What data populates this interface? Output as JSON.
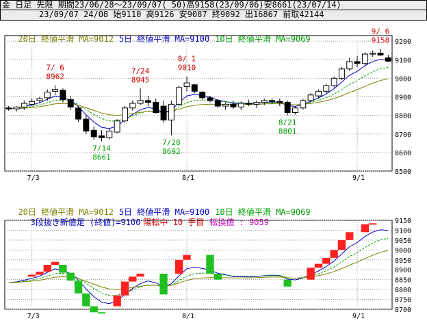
{
  "header": {
    "symbol": "金",
    "timeframe": "日足",
    "market": "先限",
    "period": "期間23/06/28〜23/09/07( 50)",
    "high_summary": "高9158(23/09/06)",
    "low_summary": "安8661(23/07/14)",
    "last_date": "23/09/07 24/08",
    "open": "始9110",
    "high": "高9126",
    "low": "安9087",
    "close": "終9092",
    "volume": "出16867",
    "prev_close": "前取42144"
  },
  "legend": {
    "ma20": "20日 終値平滑 MA=9012",
    "ma5": "5日 終値平滑 MA=9100",
    "ma10": "10日 終値平滑 MA=9069",
    "sanbon_prefix": "3段抜き新値足 (終値)=9100",
    "sanbon_state": "陽転中 10 手目",
    "sanbon_reversal": "転換値 : 9059"
  },
  "colors": {
    "ma5": "#0000c0",
    "ma10": "#00a000",
    "ma20": "#808000",
    "up_brick": "#ff2020",
    "down_brick": "#20c020",
    "high_label": "#d00000",
    "low_label": "#00a000",
    "grid": "#999999"
  },
  "x_labels": [
    "7/3",
    "8/1",
    "9/1"
  ],
  "chart_data": [
    {
      "type": "candlestick",
      "title": "日足",
      "ylim": [
        8500,
        9230
      ],
      "yticks": [
        8500,
        8600,
        8700,
        8800,
        8900,
        9000,
        9100,
        9200
      ],
      "x_tick_labels": [
        "7/3",
        "8/1",
        "9/1"
      ],
      "grid": true,
      "ohlc_columns": [
        "date",
        "open",
        "high",
        "low",
        "close"
      ],
      "ohlc": [
        [
          "6/28",
          8840,
          8850,
          8825,
          8835
        ],
        [
          "6/29",
          8835,
          8850,
          8820,
          8845
        ],
        [
          "6/30",
          8845,
          8880,
          8830,
          8865
        ],
        [
          "7/3",
          8860,
          8890,
          8850,
          8875
        ],
        [
          "7/4",
          8880,
          8900,
          8865,
          8890
        ],
        [
          "7/5",
          8895,
          8940,
          8880,
          8925
        ],
        [
          "7/6",
          8930,
          8962,
          8910,
          8940
        ],
        [
          "7/7",
          8935,
          8945,
          8870,
          8885
        ],
        [
          "7/10",
          8885,
          8905,
          8830,
          8845
        ],
        [
          "7/11",
          8840,
          8850,
          8765,
          8780
        ],
        [
          "7/12",
          8780,
          8800,
          8700,
          8715
        ],
        [
          "7/13",
          8720,
          8740,
          8670,
          8685
        ],
        [
          "7/14",
          8690,
          8720,
          8661,
          8680
        ],
        [
          "7/18",
          8680,
          8730,
          8670,
          8715
        ],
        [
          "7/19",
          8710,
          8780,
          8705,
          8770
        ],
        [
          "7/20",
          8770,
          8850,
          8760,
          8840
        ],
        [
          "7/21",
          8840,
          8880,
          8825,
          8865
        ],
        [
          "7/24",
          8865,
          8945,
          8855,
          8880
        ],
        [
          "7/25",
          8880,
          8905,
          8850,
          8870
        ],
        [
          "7/26",
          8870,
          8890,
          8810,
          8815
        ],
        [
          "7/27",
          8850,
          8880,
          8760,
          8775
        ],
        [
          "7/28",
          8775,
          8880,
          8692,
          8860
        ],
        [
          "7/31",
          8860,
          8960,
          8850,
          8950
        ],
        [
          "8/1",
          8955,
          9010,
          8930,
          8975
        ],
        [
          "8/2",
          8965,
          8970,
          8920,
          8930
        ],
        [
          "8/3",
          8925,
          8930,
          8885,
          8895
        ],
        [
          "8/4",
          8895,
          8905,
          8870,
          8880
        ],
        [
          "8/7",
          8880,
          8890,
          8840,
          8850
        ],
        [
          "8/8",
          8850,
          8870,
          8830,
          8860
        ],
        [
          "8/9",
          8860,
          8880,
          8835,
          8845
        ],
        [
          "8/10",
          8845,
          8875,
          8830,
          8865
        ],
        [
          "8/14",
          8865,
          8885,
          8850,
          8860
        ],
        [
          "8/15",
          8860,
          8880,
          8840,
          8870
        ],
        [
          "8/16",
          8870,
          8890,
          8855,
          8880
        ],
        [
          "8/17",
          8880,
          8895,
          8860,
          8875
        ],
        [
          "8/18",
          8875,
          8890,
          8850,
          8870
        ],
        [
          "8/21",
          8870,
          8880,
          8801,
          8815
        ],
        [
          "8/22",
          8815,
          8850,
          8805,
          8840
        ],
        [
          "8/23",
          8840,
          8890,
          8830,
          8880
        ],
        [
          "8/24",
          8880,
          8920,
          8870,
          8910
        ],
        [
          "8/25",
          8905,
          8940,
          8890,
          8930
        ],
        [
          "8/28",
          8930,
          8970,
          8920,
          8960
        ],
        [
          "8/29",
          8960,
          9010,
          8950,
          9000
        ],
        [
          "8/30",
          9000,
          9060,
          8990,
          9050
        ],
        [
          "8/31",
          9050,
          9110,
          9040,
          9090
        ],
        [
          "9/1",
          9090,
          9120,
          9060,
          9080
        ],
        [
          "9/4",
          9080,
          9140,
          9070,
          9130
        ],
        [
          "9/5",
          9130,
          9150,
          9115,
          9135
        ],
        [
          "9/6",
          9135,
          9158,
          9120,
          9125
        ],
        [
          "9/7",
          9110,
          9126,
          9087,
          9092
        ]
      ],
      "annotations": [
        {
          "date": "7/6",
          "value": 8962,
          "kind": "high",
          "label": "7/ 6",
          "value_label": "8962"
        },
        {
          "date": "7/14",
          "value": 8661,
          "kind": "low",
          "label": "7/14",
          "value_label": "8661"
        },
        {
          "date": "7/24",
          "value": 8945,
          "kind": "high",
          "label": "7/24",
          "value_label": "8945"
        },
        {
          "date": "7/28",
          "value": 8692,
          "kind": "low",
          "label": "7/28",
          "value_label": "8692"
        },
        {
          "date": "8/1",
          "value": 9010,
          "kind": "high",
          "label": "8/ 1",
          "value_label": "9010"
        },
        {
          "date": "8/21",
          "value": 8801,
          "kind": "low",
          "label": "8/21",
          "value_label": "8801"
        },
        {
          "date": "9/6",
          "value": 9158,
          "kind": "high",
          "label": "9/ 6",
          "value_label": "9158"
        }
      ],
      "series": [
        {
          "name": "5日 終値平滑",
          "periods": 5
        },
        {
          "name": "10日 終値平滑",
          "periods": 10
        },
        {
          "name": "20日 終値平滑",
          "periods": 20
        }
      ]
    },
    {
      "type": "brick",
      "title": "3段抜き新値足 (終値)",
      "ylim": [
        8700,
        9150
      ],
      "yticks": [
        8700,
        8750,
        8800,
        8850,
        8900,
        8950,
        9000,
        9050,
        9100,
        9150
      ],
      "x_tick_labels": [
        "7/3",
        "8/1",
        "9/1"
      ],
      "grid": true,
      "brick_columns": [
        "date",
        "low",
        "high",
        "direction"
      ],
      "bricks": [
        [
          "7/3",
          8865,
          8875,
          "up"
        ],
        [
          "7/4",
          8875,
          8890,
          "up"
        ],
        [
          "7/5",
          8890,
          8925,
          "up"
        ],
        [
          "7/6",
          8925,
          8940,
          "up"
        ],
        [
          "7/7",
          8885,
          8925,
          "down"
        ],
        [
          "7/10",
          8845,
          8885,
          "down"
        ],
        [
          "7/11",
          8780,
          8845,
          "down"
        ],
        [
          "7/12",
          8715,
          8780,
          "down"
        ],
        [
          "7/13",
          8685,
          8715,
          "down"
        ],
        [
          "7/14",
          8680,
          8685,
          "down"
        ],
        [
          "7/19",
          8715,
          8770,
          "up"
        ],
        [
          "7/20",
          8770,
          8840,
          "up"
        ],
        [
          "7/21",
          8840,
          8865,
          "up"
        ],
        [
          "7/24",
          8865,
          8880,
          "up"
        ],
        [
          "7/27",
          8775,
          8880,
          "down"
        ],
        [
          "7/31",
          8880,
          8950,
          "up"
        ],
        [
          "8/1",
          8950,
          8975,
          "up"
        ],
        [
          "8/4",
          8880,
          8975,
          "down"
        ],
        [
          "8/7",
          8850,
          8880,
          "down"
        ],
        [
          "8/21",
          8815,
          8850,
          "down"
        ],
        [
          "8/24",
          8850,
          8910,
          "up"
        ],
        [
          "8/25",
          8910,
          8930,
          "up"
        ],
        [
          "8/28",
          8930,
          8960,
          "up"
        ],
        [
          "8/29",
          8960,
          9000,
          "up"
        ],
        [
          "8/30",
          9000,
          9050,
          "up"
        ],
        [
          "8/31",
          9050,
          9090,
          "up"
        ],
        [
          "9/4",
          9090,
          9130,
          "up"
        ],
        [
          "9/5",
          9130,
          9135,
          "up"
        ]
      ]
    }
  ]
}
